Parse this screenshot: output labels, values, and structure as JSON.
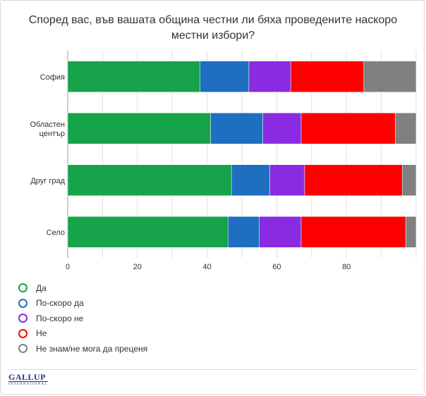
{
  "title": "Според вас, във вашата община честни ли бяха проведените наскоро местни избори?",
  "logo": {
    "main": "GALLUP",
    "sub": "INTERNATIONAL"
  },
  "chart_data": {
    "type": "bar",
    "orientation": "horizontal",
    "stacked": true,
    "categories": [
      "София",
      "Областен център",
      "Друг град",
      "Село"
    ],
    "category_display": [
      [
        "София"
      ],
      [
        "Областен",
        "център"
      ],
      [
        "Друг град"
      ],
      [
        "Село"
      ]
    ],
    "series": [
      {
        "name": "Да",
        "color": "#16a34a",
        "values": [
          38,
          41,
          47,
          46
        ]
      },
      {
        "name": "По-скоро да",
        "color": "#1e6fbf",
        "values": [
          14,
          15,
          11,
          9
        ]
      },
      {
        "name": "По-скоро не",
        "color": "#8a2be2",
        "values": [
          12,
          11,
          10,
          12
        ]
      },
      {
        "name": "Не",
        "color": "#ff0000",
        "values": [
          21,
          27,
          28,
          30
        ]
      },
      {
        "name": "Не знам/не мога да преценя",
        "color": "#808080",
        "values": [
          15,
          6,
          4,
          3
        ]
      }
    ],
    "xlim": [
      0,
      100
    ],
    "xticks": [
      0,
      20,
      40,
      60,
      80
    ],
    "grid": true,
    "legend_position": "bottom-left"
  }
}
